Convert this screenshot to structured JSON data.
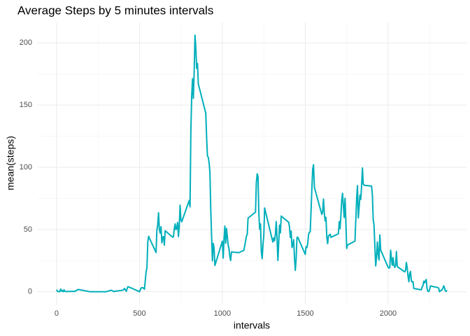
{
  "chart_data": {
    "type": "line",
    "title": "Average Steps by 5 minutes intervals",
    "x_label": "intervals",
    "y_label": "mean(steps)",
    "color": "#00AFBB",
    "xlim": [
      -117.75,
      2472.75
    ],
    "ylim": [
      -10.3,
      216.5
    ],
    "xticks": [
      0,
      500,
      1000,
      1500,
      2000
    ],
    "yticks": [
      0,
      50,
      100,
      150,
      200
    ],
    "xminor": [
      250,
      750,
      1250,
      1750,
      2250
    ],
    "yminor": [
      25,
      75,
      125,
      175
    ],
    "grid": true,
    "x": [
      0,
      5,
      10,
      15,
      20,
      25,
      30,
      35,
      40,
      45,
      50,
      55,
      100,
      110,
      130,
      200,
      230,
      300,
      330,
      345,
      355,
      400,
      410,
      420,
      430,
      440,
      450,
      500,
      510,
      520,
      530,
      540,
      545,
      550,
      555,
      600,
      605,
      610,
      615,
      620,
      625,
      630,
      635,
      640,
      645,
      650,
      655,
      700,
      705,
      710,
      715,
      720,
      725,
      730,
      735,
      740,
      745,
      750,
      755,
      800,
      805,
      810,
      815,
      820,
      825,
      830,
      835,
      840,
      845,
      850,
      855,
      900,
      905,
      910,
      915,
      920,
      925,
      930,
      935,
      940,
      945,
      950,
      955,
      1000,
      1005,
      1010,
      1015,
      1020,
      1025,
      1030,
      1035,
      1040,
      1045,
      1050,
      1055,
      1100,
      1130,
      1145,
      1150,
      1155,
      1200,
      1205,
      1210,
      1215,
      1220,
      1225,
      1230,
      1235,
      1240,
      1245,
      1250,
      1255,
      1300,
      1305,
      1310,
      1315,
      1320,
      1325,
      1330,
      1335,
      1340,
      1345,
      1350,
      1355,
      1400,
      1405,
      1410,
      1415,
      1420,
      1425,
      1430,
      1435,
      1440,
      1445,
      1450,
      1455,
      1500,
      1505,
      1510,
      1515,
      1520,
      1525,
      1530,
      1535,
      1540,
      1545,
      1550,
      1555,
      1600,
      1605,
      1610,
      1615,
      1620,
      1625,
      1630,
      1635,
      1640,
      1645,
      1650,
      1655,
      1700,
      1705,
      1710,
      1715,
      1720,
      1725,
      1730,
      1735,
      1740,
      1745,
      1750,
      1755,
      1800,
      1805,
      1810,
      1815,
      1820,
      1825,
      1830,
      1835,
      1840,
      1845,
      1850,
      1855,
      1900,
      1905,
      1910,
      1915,
      1920,
      1925,
      1930,
      1935,
      1940,
      1945,
      1950,
      1955,
      2000,
      2005,
      2010,
      2015,
      2020,
      2025,
      2030,
      2035,
      2040,
      2045,
      2050,
      2055,
      2100,
      2105,
      2110,
      2115,
      2120,
      2125,
      2130,
      2135,
      2140,
      2145,
      2150,
      2155,
      2200,
      2205,
      2210,
      2215,
      2220,
      2225,
      2230,
      2235,
      2240,
      2245,
      2250,
      2255,
      2300,
      2305,
      2310,
      2315,
      2320,
      2325,
      2330,
      2335,
      2340,
      2345,
      2350,
      2355
    ],
    "values": [
      1.7,
      0.3,
      0.1,
      0.2,
      0.1,
      2.1,
      0.5,
      0.9,
      0,
      1.5,
      0.3,
      0.1,
      0.3,
      0.2,
      1.8,
      0,
      0,
      0,
      1.2,
      0.1,
      0.4,
      1.2,
      2.6,
      0.3,
      4,
      3.5,
      3,
      0,
      3,
      3.3,
      2,
      16,
      19,
      39.5,
      44.5,
      31.5,
      49.3,
      53.8,
      63.5,
      49.9,
      47,
      52.2,
      39.3,
      44,
      44.2,
      37.4,
      49,
      43.8,
      44.4,
      50.5,
      54.5,
      49.9,
      51,
      55.7,
      44.3,
      52.3,
      69.5,
      57.8,
      56.2,
      73.4,
      68.2,
      129.4,
      157.5,
      171.2,
      155.4,
      177.3,
      206.2,
      195.9,
      179.6,
      183.4,
      167,
      143.5,
      124,
      109.1,
      108.1,
      103.7,
      95.9,
      66.2,
      45.2,
      24.8,
      38.8,
      34.98,
      21.1,
      40.6,
      26.98,
      42.4,
      52.7,
      38.9,
      50.8,
      44.3,
      37.4,
      34.7,
      28.3,
      25.1,
      31.9,
      31.4,
      33.3,
      44.6,
      46,
      59.2,
      63.9,
      87.7,
      94.8,
      92.8,
      63.4,
      50.2,
      54.5,
      32.4,
      26.5,
      37.7,
      45.1,
      67.3,
      42.3,
      39.9,
      43.3,
      40.98,
      46.2,
      56.4,
      42.8,
      25.1,
      39.97,
      53.5,
      47.3,
      60.8,
      55.8,
      51.96,
      43.6,
      48.7,
      35.5,
      37.5,
      41.8,
      27.5,
      17.1,
      26.1,
      43.6,
      43.8,
      30,
      36.1,
      35.5,
      38.8,
      45.96,
      47.8,
      48.1,
      65.3,
      82.9,
      98.7,
      102.1,
      83.96,
      62.1,
      64.1,
      74.5,
      63.2,
      56.9,
      59.8,
      43.9,
      38.6,
      44.7,
      45.5,
      46.2,
      43.7,
      46.6,
      56.3,
      50.7,
      61.2,
      73.4,
      79.1,
      68.9,
      59.7,
      75.1,
      56.5,
      34.8,
      37.5,
      40.7,
      58,
      74.7,
      85.3,
      59.3,
      67.8,
      77.7,
      74.2,
      85.3,
      99.5,
      86.6,
      85.6,
      84.9,
      77.8,
      58,
      53.4,
      36.3,
      20.7,
      27.4,
      40,
      30.2,
      25.5,
      45.7,
      33.5,
      19.6,
      19,
      19.3,
      33.3,
      26.8,
      21.2,
      27.3,
      21.3,
      19.5,
      21.3,
      32.3,
      20.2,
      15.9,
      17.2,
      23.5,
      19.2,
      12.5,
      8,
      14.7,
      16.3,
      8.7,
      7.8,
      8.1,
      2.6,
      1.5,
      3.7,
      4.8,
      8.5,
      7.1,
      8.7,
      9.8,
      2.2,
      0.3,
      0.1,
      1.6,
      4.6,
      3.3,
      2.8,
      0,
      0.8,
      0.96,
      1.6,
      2.6,
      4.7,
      3.3,
      0.6,
      0.2,
      1.1
    ]
  }
}
